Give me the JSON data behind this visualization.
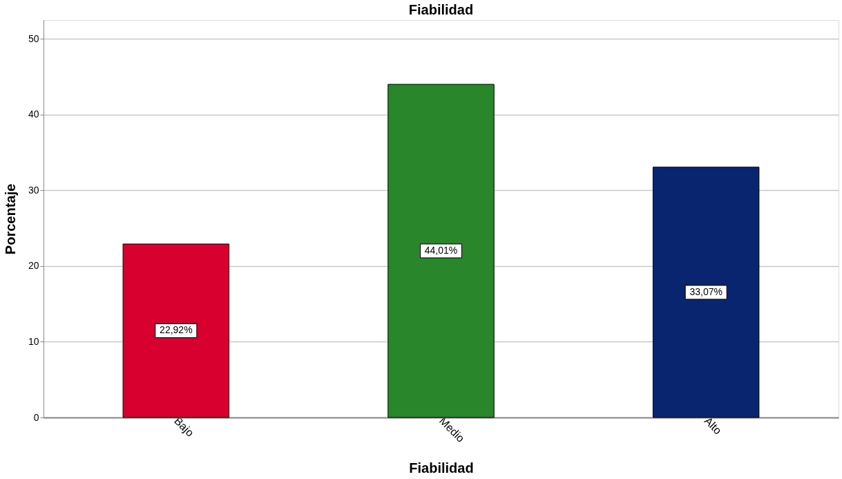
{
  "chart_data": {
    "type": "bar",
    "title": "Fiabilidad",
    "xlabel": "Fiabilidad",
    "ylabel": "Porcentaje",
    "categories": [
      "Bajo",
      "Medio",
      "Alto"
    ],
    "values": [
      22.92,
      44.01,
      33.07
    ],
    "colors": [
      "#d7002f",
      "#2a862a",
      "#0a2570"
    ],
    "value_labels": [
      "22,92%",
      "44,01%",
      "33,07%"
    ],
    "ylim": [
      0,
      52.5
    ],
    "yticks": [
      0,
      10,
      20,
      30,
      40,
      50
    ],
    "grid": "y"
  }
}
